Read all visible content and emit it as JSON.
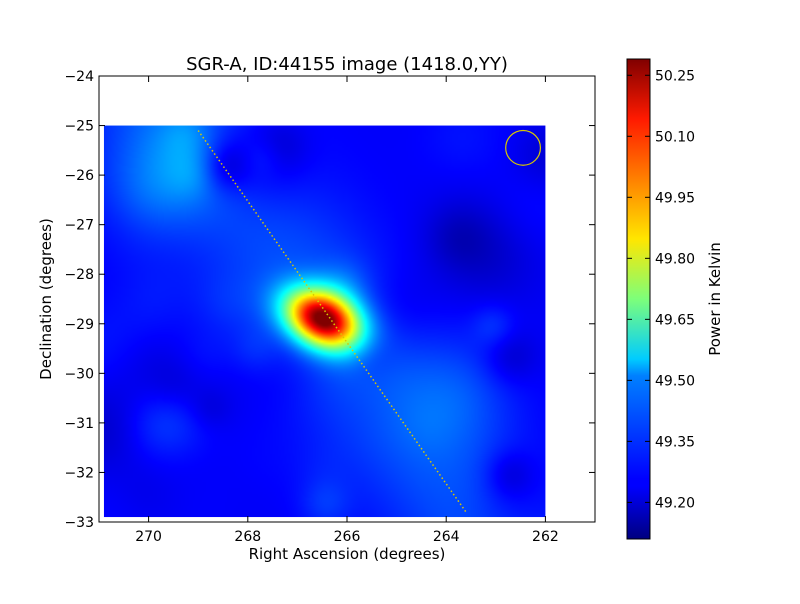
{
  "chart_data": {
    "type": "heatmap",
    "title": "SGR-A, ID:44155 image (1418.0,YY)",
    "xlabel": "Right Ascension (degrees)",
    "ylabel": "Declination (degrees)",
    "xlim": [
      271,
      261
    ],
    "ylim": [
      -33,
      -24
    ],
    "x_ticks": [
      270,
      268,
      266,
      264,
      262
    ],
    "x_tick_labels": [
      "270",
      "268",
      "266",
      "264",
      "262"
    ],
    "y_ticks": [
      -24,
      -25,
      -26,
      -27,
      -28,
      -29,
      -30,
      -31,
      -32,
      -33
    ],
    "y_tick_labels": [
      "−24",
      "−25",
      "−26",
      "−27",
      "−28",
      "−29",
      "−30",
      "−31",
      "−32",
      "−33"
    ],
    "image_extent": {
      "ra": [
        270.9,
        262.0
      ],
      "dec": [
        -32.9,
        -25.0
      ]
    },
    "colormap": "jet",
    "colorbar": {
      "label": "Power in Kelvin",
      "min": 49.11,
      "max": 50.29,
      "ticks": [
        49.2,
        49.35,
        49.5,
        49.65,
        49.8,
        49.95,
        50.1,
        50.25
      ],
      "tick_labels": [
        "49.20",
        "49.35",
        "49.50",
        "49.65",
        "49.80",
        "49.95",
        "50.10",
        "50.25"
      ]
    },
    "background_level": 49.25,
    "sources": [
      {
        "ra": 266.5,
        "dec": -28.9,
        "peak": 50.27,
        "sigma_major_deg": 0.55,
        "sigma_minor_deg": 0.38,
        "angle_deg": -25
      }
    ],
    "overlays": {
      "galactic_plane_line": {
        "from": {
          "ra": 269.0,
          "dec": -25.1
        },
        "to": {
          "ra": 263.6,
          "dec": -32.8
        },
        "color": "#d8c800",
        "style": "dotted"
      },
      "beam_circle": {
        "ra": 262.45,
        "dec": -25.45,
        "radius_deg": 0.35,
        "color": "#d8c800"
      }
    }
  }
}
